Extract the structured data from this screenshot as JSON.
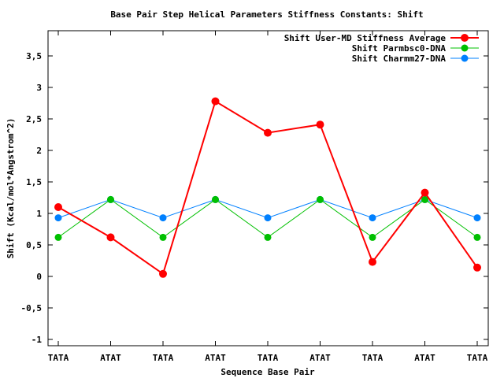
{
  "chart_data": {
    "type": "line",
    "title": "Base Pair Step Helical Parameters Stiffness Constants: Shift",
    "xlabel": "Sequence Base Pair",
    "ylabel": "Shift (Kcal/mol*Angstrom^2)",
    "categories": [
      "TATA",
      "ATAT",
      "TATA",
      "ATAT",
      "TATA",
      "ATAT",
      "TATA",
      "ATAT",
      "TATA"
    ],
    "ylim": [
      -1.1,
      3.9
    ],
    "yticks": [
      {
        "value": -1,
        "label": "-1"
      },
      {
        "value": -0.5,
        "label": "-0,5"
      },
      {
        "value": 0,
        "label": "0"
      },
      {
        "value": 0.5,
        "label": "0,5"
      },
      {
        "value": 1,
        "label": "1"
      },
      {
        "value": 1.5,
        "label": "1,5"
      },
      {
        "value": 2,
        "label": "2"
      },
      {
        "value": 2.5,
        "label": "2,5"
      },
      {
        "value": 3,
        "label": "3"
      },
      {
        "value": 3.5,
        "label": "3,5"
      }
    ],
    "grid": false,
    "legend_position": "top-right",
    "series": [
      {
        "name": "Shift User-MD Stiffness Average",
        "color": "#ff0000",
        "values": [
          1.1,
          0.62,
          0.04,
          2.78,
          2.28,
          2.41,
          0.23,
          1.33,
          0.14
        ]
      },
      {
        "name": "Shift Parmbsc0-DNA",
        "color": "#00c000",
        "values": [
          0.62,
          1.22,
          0.62,
          1.22,
          0.62,
          1.22,
          0.62,
          1.22,
          0.62
        ]
      },
      {
        "name": "Shift Charmm27-DNA",
        "color": "#0080ff",
        "values": [
          0.93,
          1.22,
          0.93,
          1.22,
          0.93,
          1.22,
          0.93,
          1.22,
          0.93
        ]
      }
    ]
  }
}
